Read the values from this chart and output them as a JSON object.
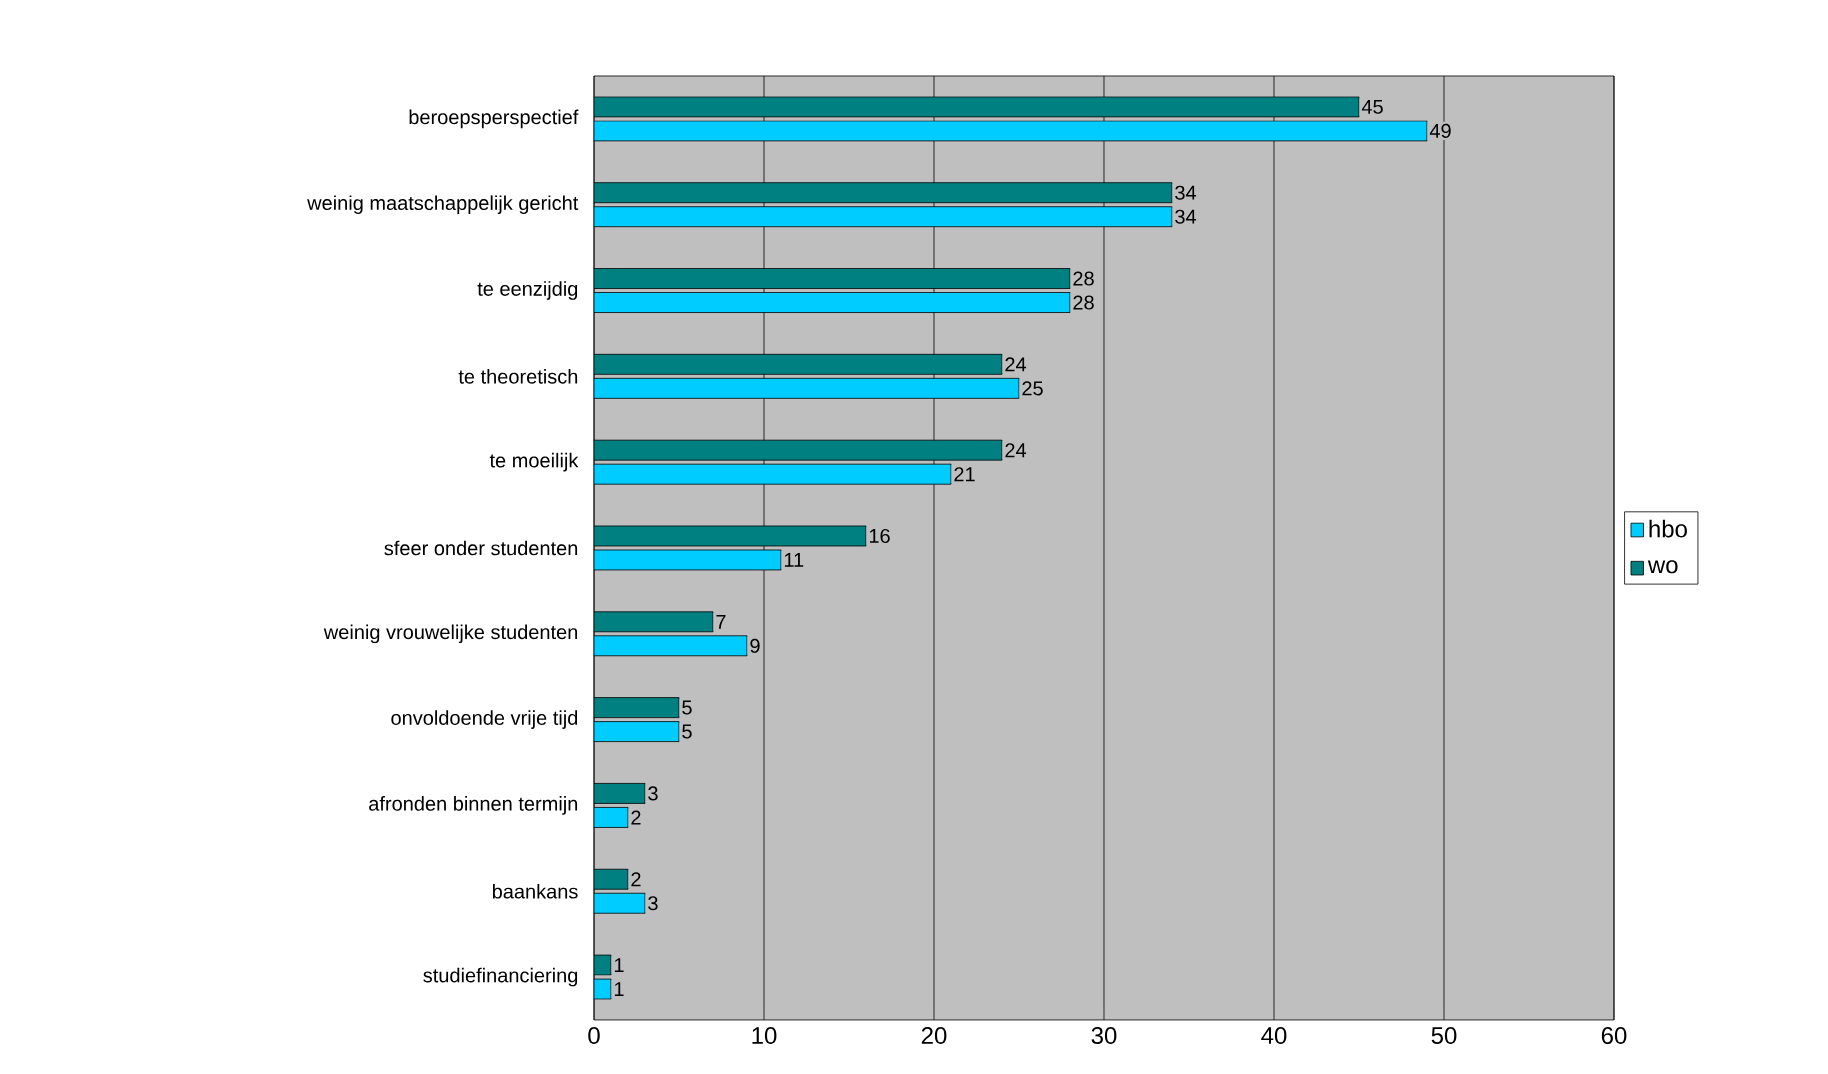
{
  "chart_data": {
    "type": "bar",
    "orientation": "horizontal",
    "categories": [
      "beroepsperspectief",
      "weinig maatschappelijk gericht",
      "te eenzijdig",
      "te theoretisch",
      "te moeilijk",
      "sfeer onder studenten",
      "weinig vrouwelijke studenten",
      "onvoldoende vrije tijd",
      "afronden binnen termijn",
      "baankans",
      "studiefinanciering"
    ],
    "series": [
      {
        "name": "hbo",
        "color": "#00ccff",
        "values": [
          49,
          34,
          28,
          25,
          21,
          11,
          9,
          5,
          2,
          3,
          1
        ]
      },
      {
        "name": "wo",
        "color": "#008080",
        "values": [
          45,
          34,
          28,
          24,
          24,
          16,
          7,
          5,
          3,
          2,
          1
        ]
      }
    ],
    "xlim": [
      0,
      60
    ],
    "xticks": [
      0,
      10,
      20,
      30,
      40,
      50,
      60
    ],
    "grid": "x",
    "legend": "right",
    "data_labels": true
  }
}
